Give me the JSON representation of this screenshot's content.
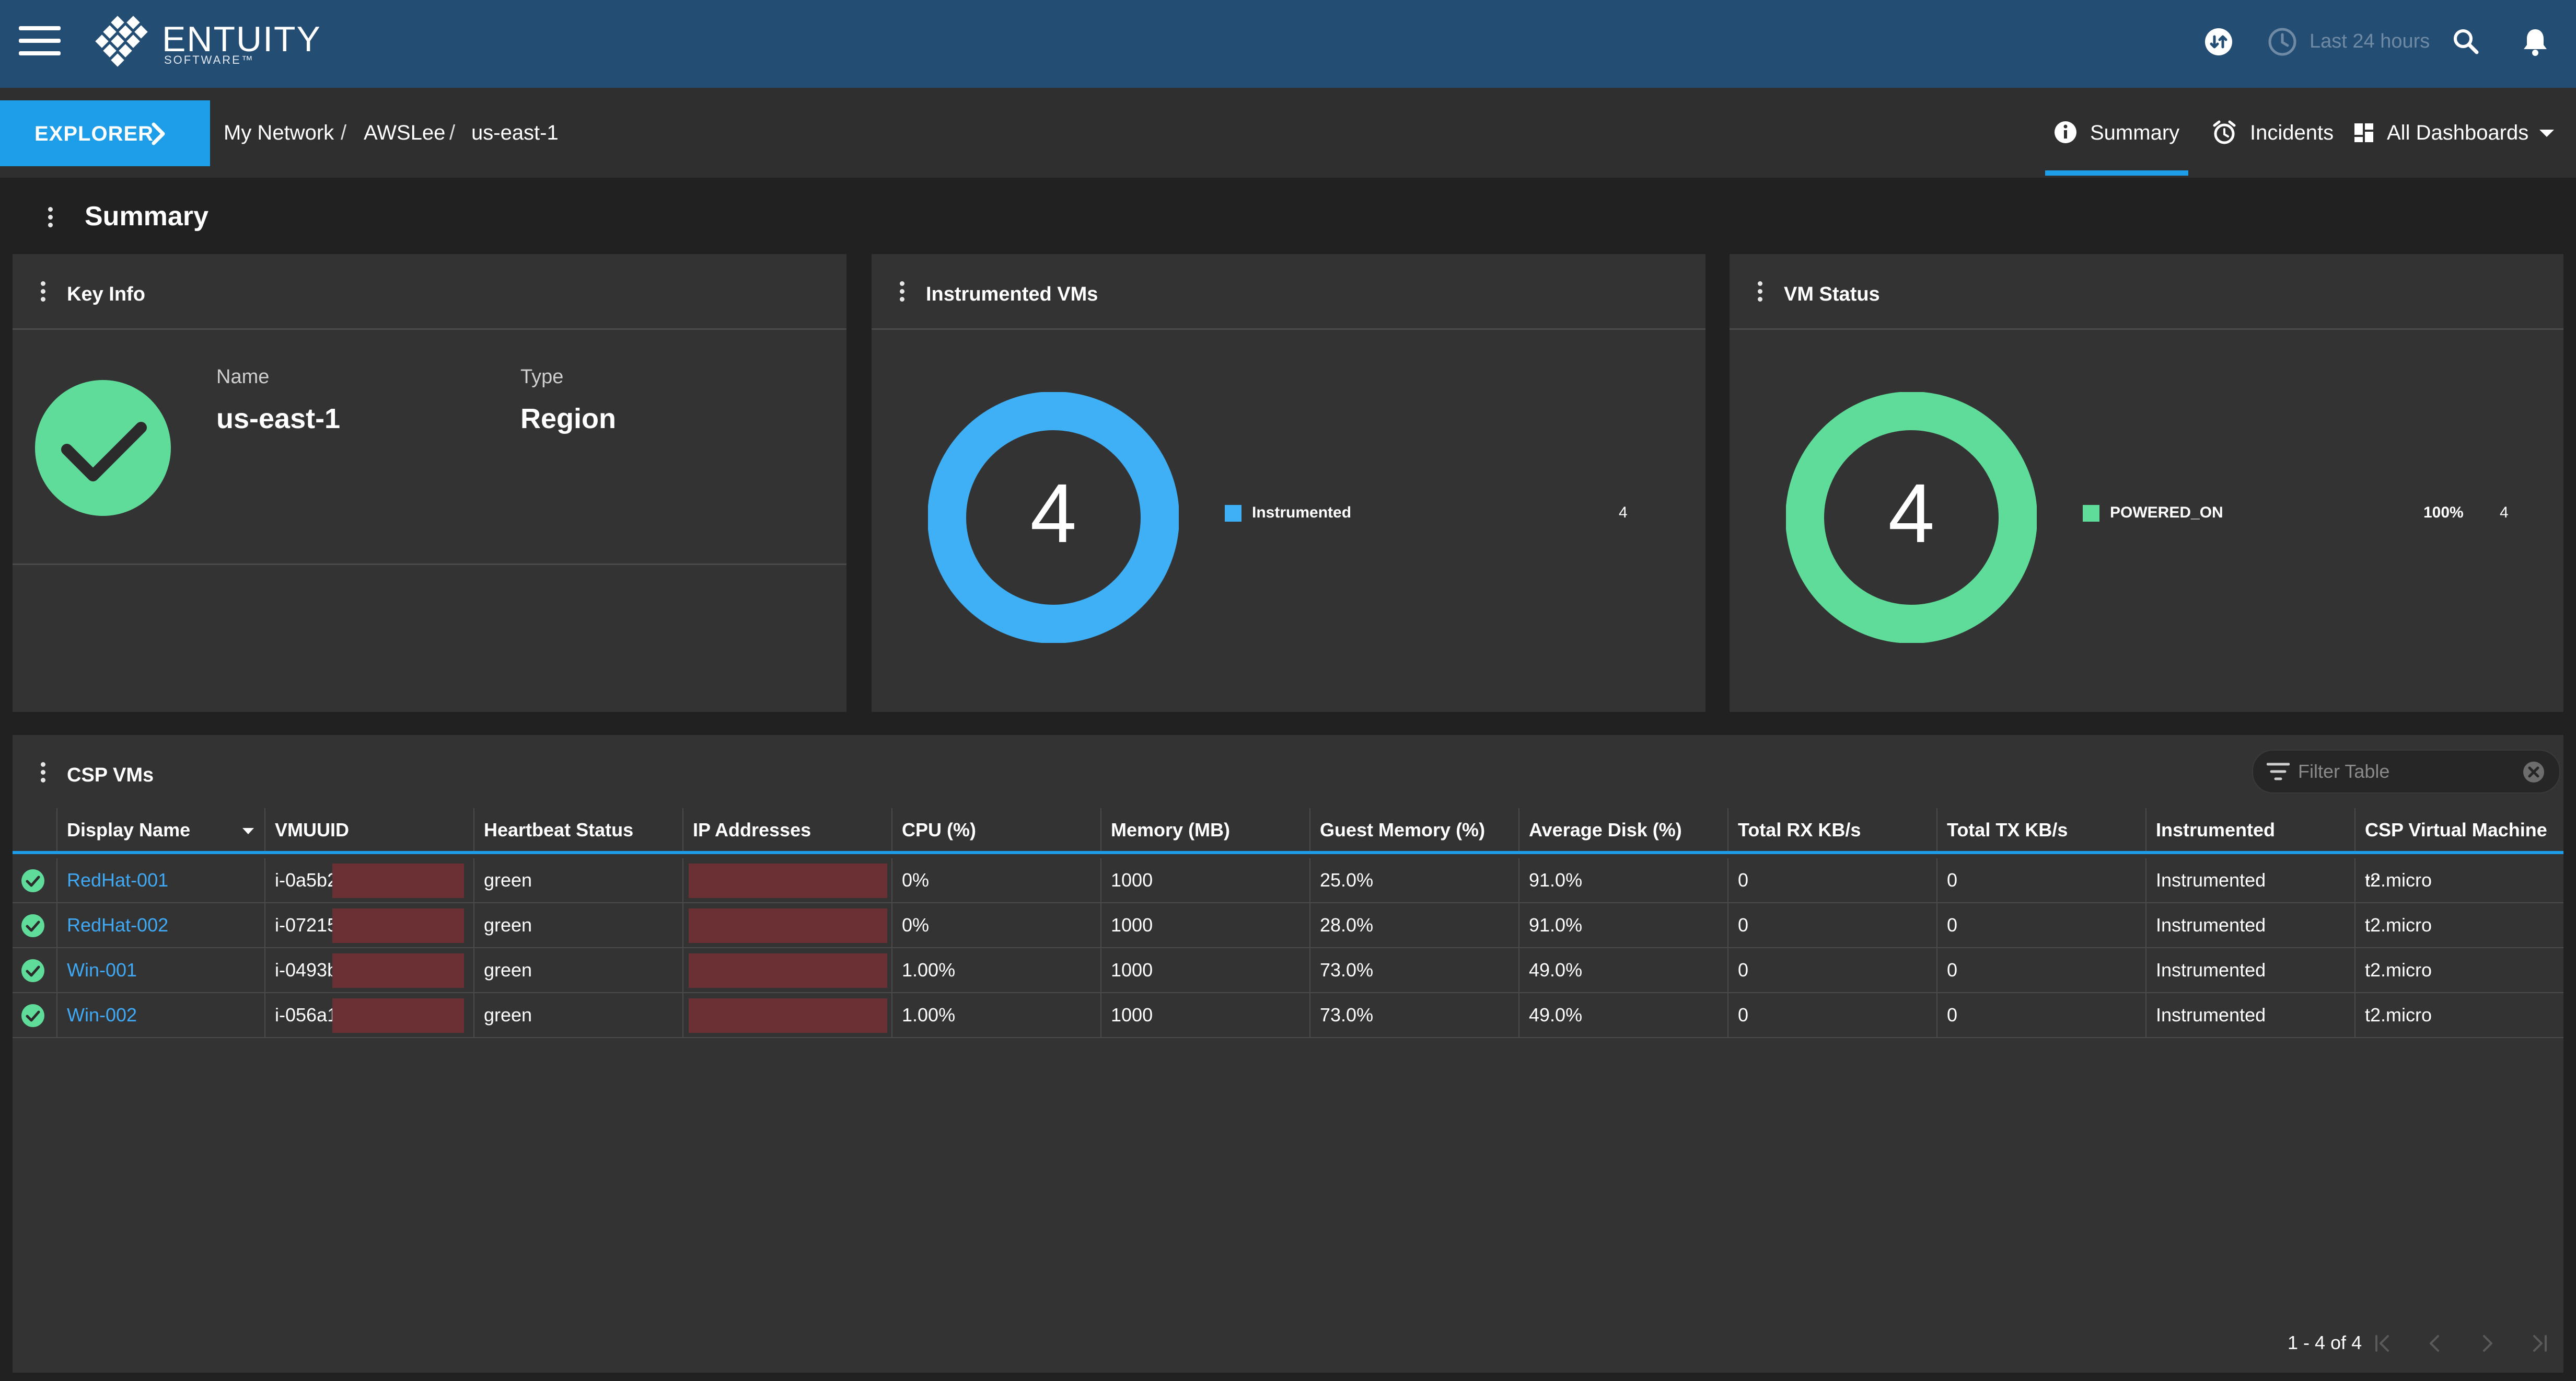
{
  "app": {
    "logo_text": "ENTUITY",
    "logo_subtext": "SOFTWARE™",
    "time_range": "Last 24 hours",
    "brand_color": "#234d73",
    "accent_color": "#1e9de8"
  },
  "nav": {
    "explorer_label": "EXPLORER",
    "breadcrumb": [
      "My Network",
      "AWSLee",
      "us-east-1"
    ],
    "tabs": [
      {
        "label": "Summary",
        "icon": "info-icon",
        "active": true
      },
      {
        "label": "Incidents",
        "icon": "alarm-icon"
      },
      {
        "label": "All Dashboards",
        "icon": "dashboard-icon"
      }
    ]
  },
  "page": {
    "title": "Summary"
  },
  "key_info": {
    "title": "Key Info",
    "status_icon": "check-circle-icon",
    "name_label": "Name",
    "name_value": "us-east-1",
    "type_label": "Type",
    "type_value": "Region"
  },
  "instrumented_vms": {
    "title": "Instrumented VMs",
    "total": "4",
    "legend": [
      {
        "label": "Instrumented",
        "count": "4",
        "color": "#3fb0f5"
      }
    ]
  },
  "vm_status": {
    "title": "VM Status",
    "total": "4",
    "legend": [
      {
        "label": "POWERED_ON",
        "percent": "100%",
        "count": "4",
        "color": "#5fdc9a"
      }
    ]
  },
  "csp_vms": {
    "title": "CSP VMs",
    "filter_placeholder": "Filter Table",
    "columns": [
      "Display Name",
      "VMUUID",
      "Heartbeat Status",
      "IP Addresses",
      "CPU (%)",
      "Memory (MB)",
      "Guest Memory (%)",
      "Average Disk (%)",
      "Total RX KB/s",
      "Total TX KB/s",
      "Instrumented",
      "CSP Virtual Machine ..."
    ],
    "rows": [
      [
        "RedHat-001",
        "i-0a5b2",
        "green",
        "",
        "0%",
        "1000",
        "25.0%",
        "91.0%",
        "0",
        "0",
        "Instrumented",
        "t2.micro"
      ],
      [
        "RedHat-002",
        "i-07215",
        "green",
        "",
        "0%",
        "1000",
        "28.0%",
        "91.0%",
        "0",
        "0",
        "Instrumented",
        "t2.micro"
      ],
      [
        "Win-001",
        "i-0493b",
        "green",
        "",
        "1.00%",
        "1000",
        "73.0%",
        "49.0%",
        "0",
        "0",
        "Instrumented",
        "t2.micro"
      ],
      [
        "Win-002",
        "i-056a1",
        "green",
        "",
        "1.00%",
        "1000",
        "73.0%",
        "49.0%",
        "0",
        "0",
        "Instrumented",
        "t2.micro"
      ]
    ],
    "pagination": "1 - 4 of 4"
  }
}
